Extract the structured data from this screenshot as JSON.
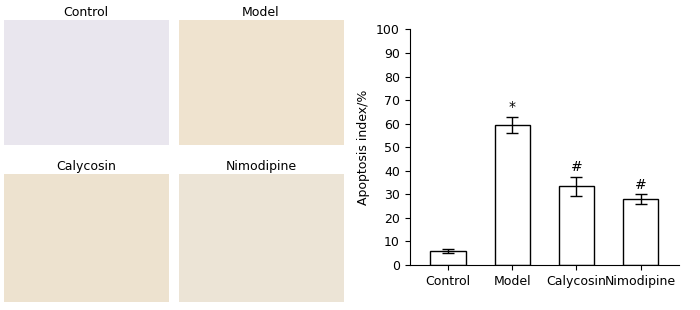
{
  "image_panels": [
    "Control",
    "Model",
    "Calycosin",
    "Nimodipine"
  ],
  "chart_data": {
    "type": "bar",
    "categories": [
      "Control",
      "Model",
      "Calycosin",
      "Nimodipine"
    ],
    "values": [
      6,
      59.5,
      33.5,
      28
    ],
    "errors": [
      1,
      3.5,
      4,
      2
    ],
    "annotations": [
      null,
      "*",
      "#",
      "#"
    ],
    "color": "#ffffff",
    "y_label": "Apoptosis index/%",
    "ylim": [
      0,
      100
    ],
    "yticks": [
      0,
      10,
      20,
      30,
      40,
      50,
      60,
      70,
      80,
      90,
      100
    ],
    "grid": false
  }
}
